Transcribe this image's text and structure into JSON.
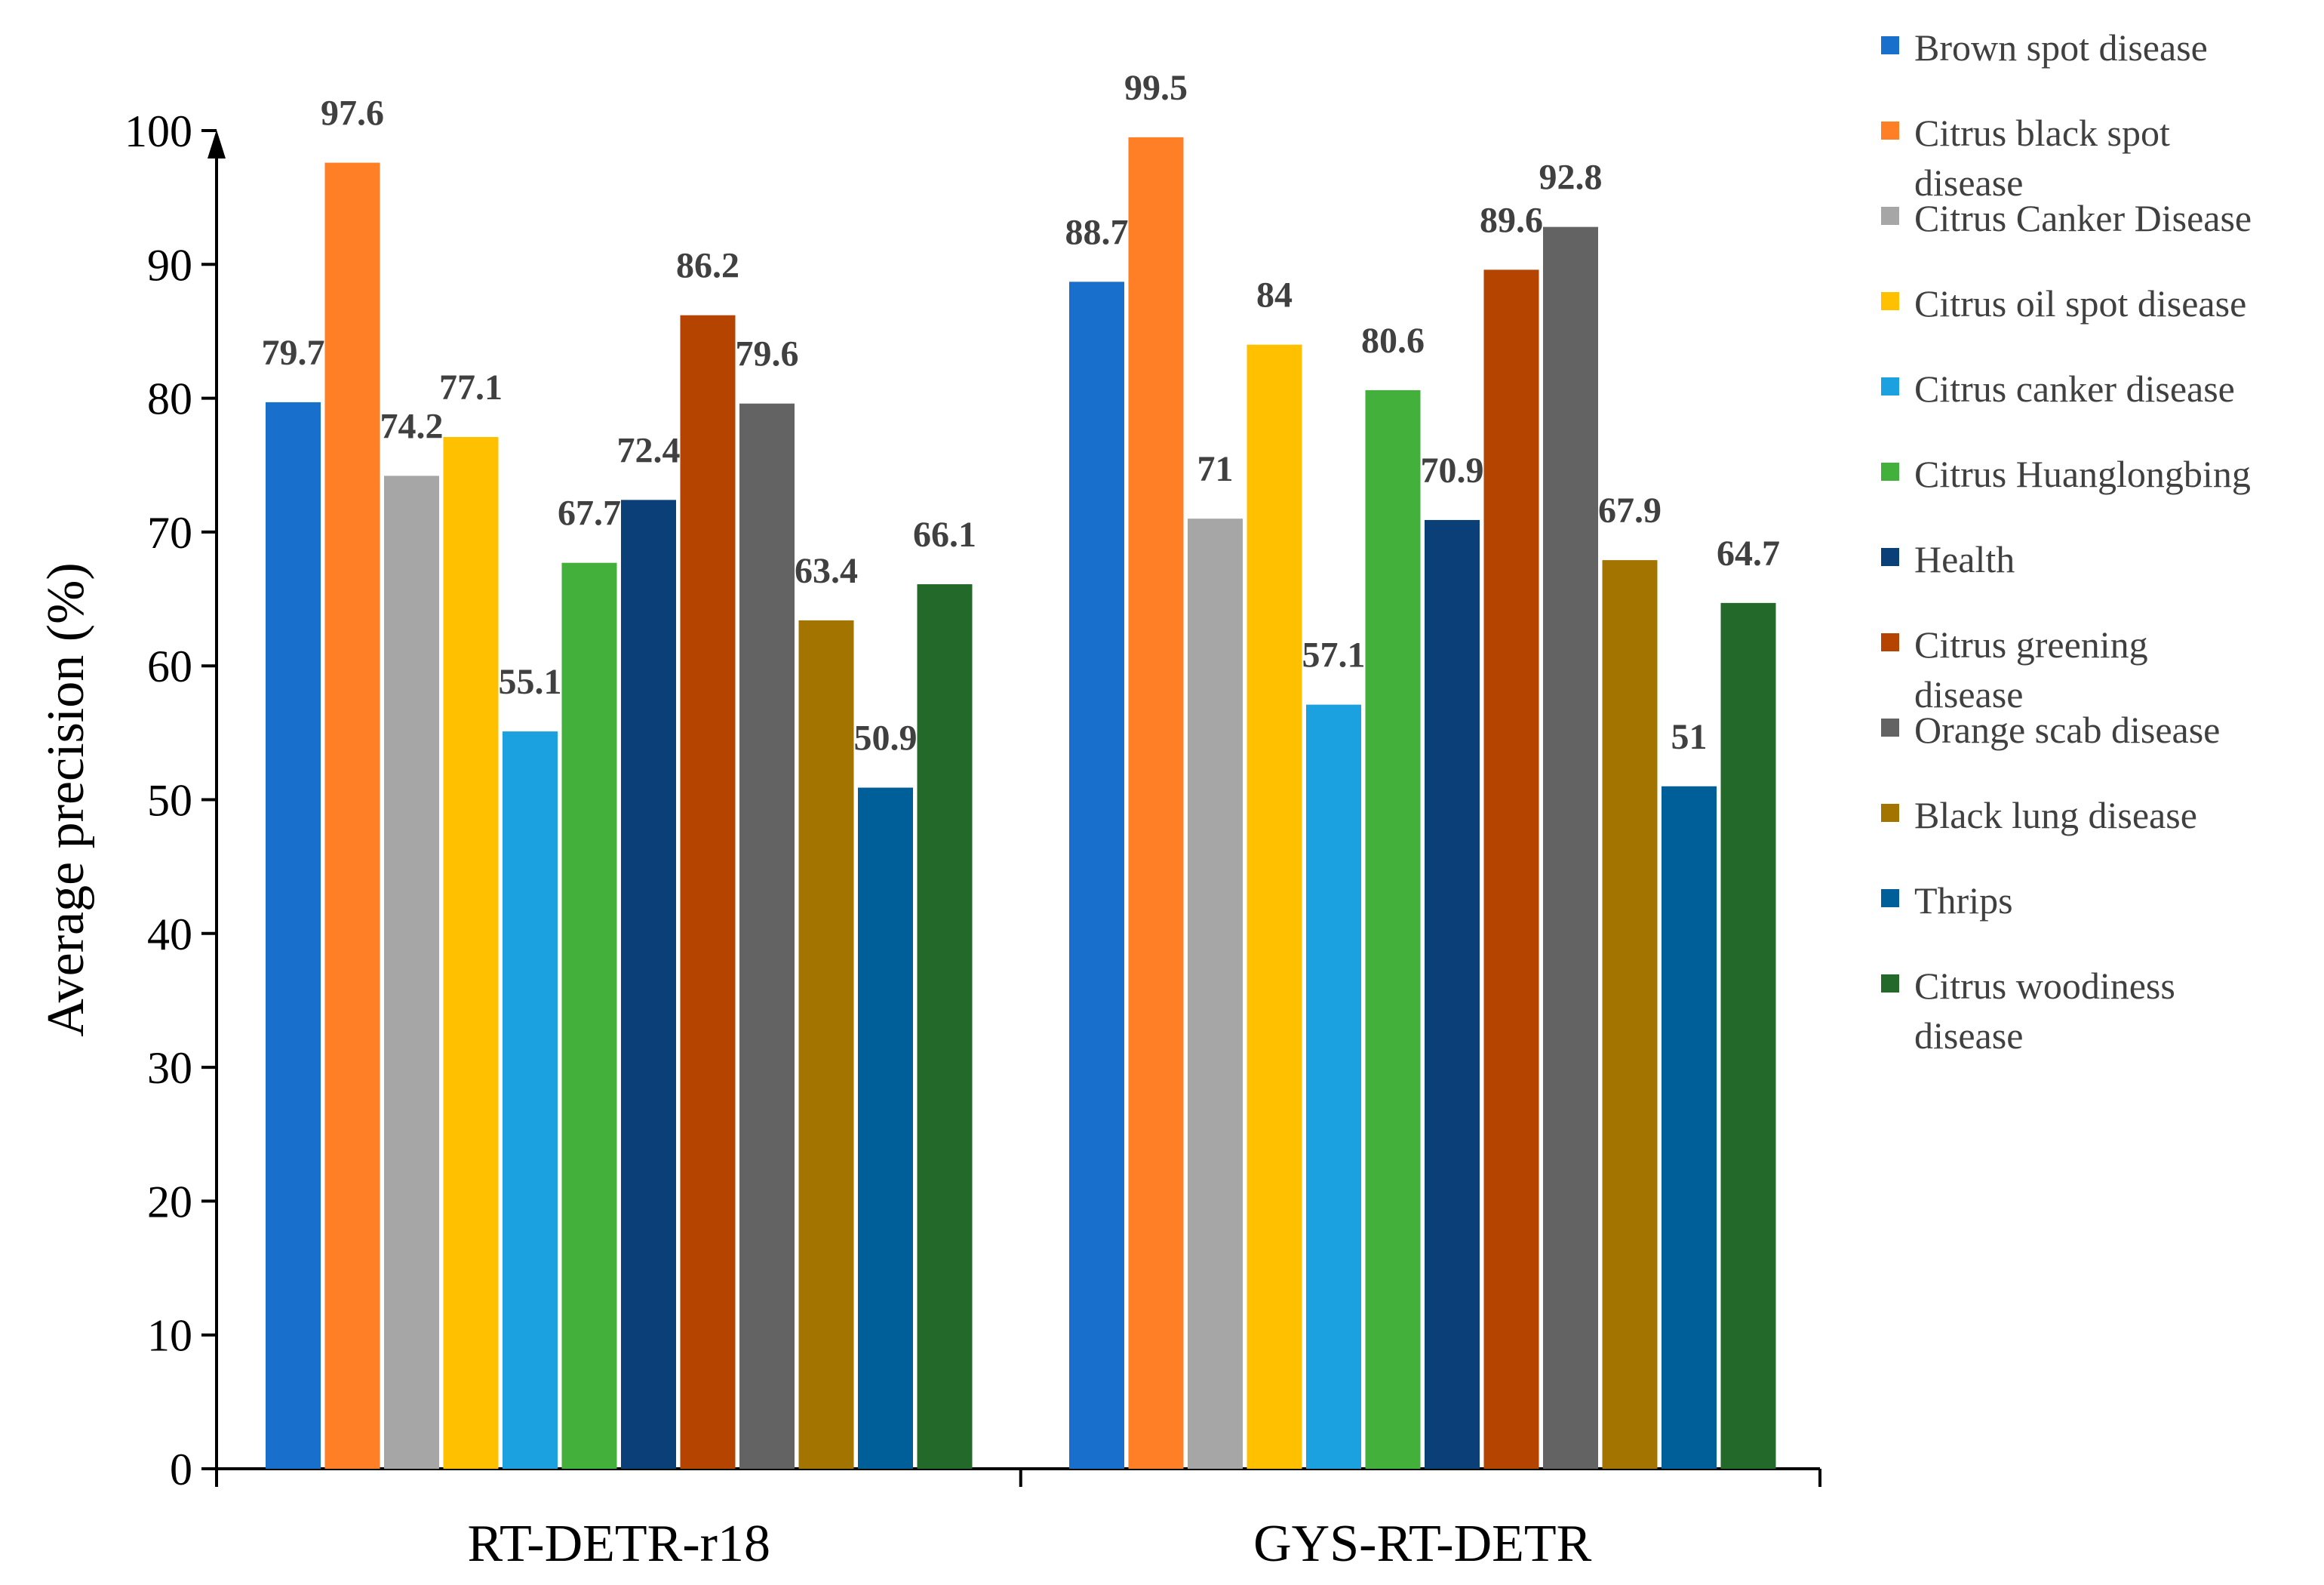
{
  "chart_data": {
    "type": "bar",
    "title": "",
    "xlabel": "",
    "ylabel": "Average precision (%)",
    "ylim": [
      0,
      100
    ],
    "yticks": [
      0,
      10,
      20,
      30,
      40,
      50,
      60,
      70,
      80,
      90,
      100
    ],
    "grid": false,
    "legend_position": "right",
    "categories": [
      "RT-DETR-r18",
      "GYS-RT-DETR"
    ],
    "series": [
      {
        "name": "Brown spot disease",
        "legend_lines": [
          "Brown spot disease"
        ],
        "color": "#1870CC",
        "values": [
          79.7,
          88.7
        ],
        "value_labels": [
          "79.7",
          "88.7"
        ]
      },
      {
        "name": "Citrus black spot disease",
        "legend_lines": [
          "Citrus black spot",
          "disease"
        ],
        "color": "#FF7F27",
        "values": [
          97.6,
          99.5
        ],
        "value_labels": [
          "97.6",
          "99.5"
        ]
      },
      {
        "name": "Citrus Canker Disease",
        "legend_lines": [
          "Citrus Canker Disease"
        ],
        "color": "#A6A6A6",
        "values": [
          74.2,
          71
        ],
        "value_labels": [
          "74.2",
          "71"
        ]
      },
      {
        "name": "Citrus oil spot disease",
        "legend_lines": [
          "Citrus oil spot disease"
        ],
        "color": "#FFC000",
        "values": [
          77.1,
          84
        ],
        "value_labels": [
          "77.1",
          "84"
        ]
      },
      {
        "name": "Citrus canker disease",
        "legend_lines": [
          "Citrus canker disease"
        ],
        "color": "#1BA1DF",
        "values": [
          55.1,
          57.1
        ],
        "value_labels": [
          "55.1",
          "57.1"
        ]
      },
      {
        "name": "Citrus Huanglongbing",
        "legend_lines": [
          "Citrus Huanglongbing"
        ],
        "color": "#43B03C",
        "values": [
          67.7,
          80.6
        ],
        "value_labels": [
          "67.7",
          "80.6"
        ]
      },
      {
        "name": "Health",
        "legend_lines": [
          "Health"
        ],
        "color": "#0B3F78",
        "values": [
          72.4,
          70.9
        ],
        "value_labels": [
          "72.4",
          "70.9"
        ]
      },
      {
        "name": "Citrus greening disease",
        "legend_lines": [
          "Citrus greening",
          "disease"
        ],
        "color": "#B54400",
        "values": [
          86.2,
          89.6
        ],
        "value_labels": [
          "86.2",
          "89.6"
        ]
      },
      {
        "name": "Orange scab disease",
        "legend_lines": [
          "Orange scab disease"
        ],
        "color": "#636363",
        "values": [
          79.6,
          92.8
        ],
        "value_labels": [
          "79.6",
          "92.8"
        ]
      },
      {
        "name": "Black lung disease",
        "legend_lines": [
          "Black lung disease"
        ],
        "color": "#A47400",
        "values": [
          63.4,
          67.9
        ],
        "value_labels": [
          "63.4",
          "67.9"
        ]
      },
      {
        "name": "Thrips",
        "legend_lines": [
          "Thrips"
        ],
        "color": "#005F99",
        "values": [
          50.9,
          51
        ],
        "value_labels": [
          "50.9",
          "51"
        ]
      },
      {
        "name": "Citrus woodiness disease",
        "legend_lines": [
          "Citrus woodiness",
          "disease"
        ],
        "color": "#22692A",
        "values": [
          66.1,
          64.7
        ],
        "value_labels": [
          "66.1",
          "64.7"
        ]
      }
    ]
  }
}
